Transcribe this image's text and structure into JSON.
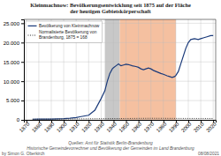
{
  "chart_data": {
    "type": "line",
    "title": "Kleinmachnow: Bevölkerungsentwicklung seit 1875 auf der Fläche\nder heutigen Gebietskörperschaft",
    "xlim": [
      1868,
      2022
    ],
    "ylim": [
      0,
      26000
    ],
    "xticks": [
      1870,
      1880,
      1890,
      1900,
      1910,
      1920,
      1930,
      1940,
      1950,
      1960,
      1970,
      1980,
      1990,
      2000,
      2010,
      2020
    ],
    "yticks": [
      0,
      {
        "value": 5000,
        "label": "5.000"
      },
      {
        "value": 10000,
        "label": "10.000"
      },
      {
        "value": 15000,
        "label": "15.000"
      },
      {
        "value": 20000,
        "label": "20.000"
      },
      {
        "value": 25000,
        "label": "25.000"
      }
    ],
    "grid": true,
    "legend": "upper left",
    "spans": [
      {
        "start": 1933,
        "end": 1945,
        "color": "#c8c8c8"
      },
      {
        "start": 1945,
        "end": 1990,
        "color": "#f5c0a0"
      }
    ],
    "series": [
      {
        "name": "Bevölkerung von Kleinmachnow",
        "color": "#1a3a7a",
        "line_style": "solid",
        "x": [
          1875,
          1880,
          1885,
          1890,
          1895,
          1900,
          1905,
          1910,
          1913,
          1920,
          1925,
          1930,
          1933,
          1935,
          1937,
          1939,
          1940,
          1942,
          1944,
          1945,
          1946,
          1948,
          1950,
          1952,
          1955,
          1958,
          1960,
          1962,
          1964,
          1966,
          1968,
          1970,
          1972,
          1975,
          1978,
          1980,
          1983,
          1985,
          1987,
          1989,
          1990,
          1992,
          1994,
          1996,
          1998,
          2000,
          2002,
          2005,
          2008,
          2010,
          2012,
          2015,
          2018,
          2020
        ],
        "values": [
          168,
          180,
          195,
          220,
          260,
          330,
          440,
          600,
          800,
          1200,
          2500,
          5500,
          7500,
          10000,
          12000,
          13200,
          13500,
          14000,
          14500,
          14200,
          14000,
          14200,
          14400,
          14300,
          14000,
          13800,
          13600,
          13200,
          13000,
          13200,
          13400,
          13200,
          12800,
          12400,
          12000,
          11800,
          11400,
          11200,
          11000,
          11200,
          11500,
          12500,
          14500,
          16500,
          18500,
          20000,
          20800,
          21000,
          20800,
          21000,
          21200,
          21500,
          21800,
          21800
        ]
      },
      {
        "name": "Normalisierte Bevölkerung von\nBrandenburg, 1875 = 168",
        "color": "#333333",
        "line_style": "dotted",
        "x": [
          1875,
          1880,
          1890,
          1900,
          1910,
          1920,
          1930,
          1940,
          1950,
          1960,
          1970,
          1980,
          1990,
          2000,
          2010,
          2020
        ],
        "values": [
          168,
          175,
          195,
          220,
          260,
          280,
          310,
          330,
          350,
          380,
          400,
          390,
          370,
          360,
          355,
          350
        ]
      }
    ],
    "annotations": [
      "Quellen: Amt für Statistik Berlin-Brandenburg",
      "Historische Gemeindevorrechner und Bevölkerung der Gemeinden im Land Brandenburg",
      "by Simon G. Oberkirch",
      "08/08/2021"
    ]
  }
}
